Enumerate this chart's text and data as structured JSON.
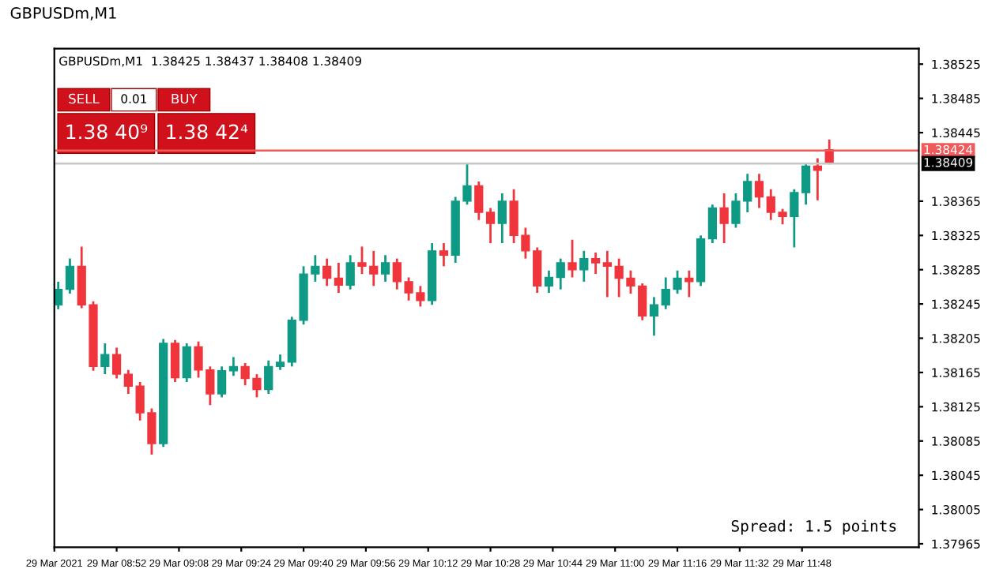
{
  "chart_data": {
    "type": "candlestick",
    "title": "GBPUSDm,M1",
    "subtitle": "GBPUSDm,M1  1.38425 1.38437 1.38408 1.38409",
    "annotations": [
      "SELL",
      "BUY",
      "0.01",
      "1.38 40⁹",
      "1.38 42⁴",
      "Spread: 1.5 points"
    ],
    "x": [
      "2021-03-29T08:37",
      "2021-03-29T08:40",
      "2021-03-29T08:43",
      "2021-03-29T08:46",
      "2021-03-29T08:49",
      "2021-03-29T08:52",
      "2021-03-29T08:55",
      "2021-03-29T08:58",
      "2021-03-29T09:01",
      "2021-03-29T09:04",
      "2021-03-29T09:07",
      "2021-03-29T09:10",
      "2021-03-29T09:13",
      "2021-03-29T09:16",
      "2021-03-29T09:19",
      "2021-03-29T09:22",
      "2021-03-29T09:25",
      "2021-03-29T09:28",
      "2021-03-29T09:31",
      "2021-03-29T09:34",
      "2021-03-29T09:37",
      "2021-03-29T09:40",
      "2021-03-29T09:43",
      "2021-03-29T09:46",
      "2021-03-29T09:49",
      "2021-03-29T09:52",
      "2021-03-29T09:55",
      "2021-03-29T09:58",
      "2021-03-29T10:01",
      "2021-03-29T10:04",
      "2021-03-29T10:07",
      "2021-03-29T10:10",
      "2021-03-29T10:13",
      "2021-03-29T10:16",
      "2021-03-29T10:19",
      "2021-03-29T10:22",
      "2021-03-29T10:25",
      "2021-03-29T10:28",
      "2021-03-29T10:31",
      "2021-03-29T10:34",
      "2021-03-29T10:37",
      "2021-03-29T10:40",
      "2021-03-29T10:43",
      "2021-03-29T10:46",
      "2021-03-29T10:49",
      "2021-03-29T10:52",
      "2021-03-29T10:55",
      "2021-03-29T10:58",
      "2021-03-29T11:01",
      "2021-03-29T11:04",
      "2021-03-29T11:07",
      "2021-03-29T11:10",
      "2021-03-29T11:13",
      "2021-03-29T11:16",
      "2021-03-29T11:19",
      "2021-03-29T11:22",
      "2021-03-29T11:25",
      "2021-03-29T11:28",
      "2021-03-29T11:31",
      "2021-03-29T11:34",
      "2021-03-29T11:37",
      "2021-03-29T11:40",
      "2021-03-29T11:43",
      "2021-03-29T11:46",
      "2021-03-29T11:49",
      "2021-03-29T11:52",
      "2021-03-29T11:55"
    ],
    "ohlc": [
      [
        1.38244,
        1.38271,
        1.38239,
        1.38262
      ],
      [
        1.38262,
        1.38298,
        1.38257,
        1.38289
      ],
      [
        1.38289,
        1.38312,
        1.3824,
        1.38244
      ],
      [
        1.38244,
        1.38248,
        1.38167,
        1.38172
      ],
      [
        1.38172,
        1.38199,
        1.38163,
        1.38186
      ],
      [
        1.38186,
        1.38194,
        1.38158,
        1.38163
      ],
      [
        1.38163,
        1.38168,
        1.3814,
        1.38149
      ],
      [
        1.38149,
        1.38154,
        1.38109,
        1.38118
      ],
      [
        1.38118,
        1.38123,
        1.38069,
        1.38082
      ],
      [
        1.38082,
        1.38204,
        1.38078,
        1.38199
      ],
      [
        1.38199,
        1.38203,
        1.38154,
        1.38159
      ],
      [
        1.38159,
        1.38199,
        1.38154,
        1.38195
      ],
      [
        1.38195,
        1.38201,
        1.38159,
        1.38168
      ],
      [
        1.38168,
        1.38172,
        1.38127,
        1.3814
      ],
      [
        1.3814,
        1.38172,
        1.38136,
        1.38167
      ],
      [
        1.38167,
        1.38183,
        1.38161,
        1.38172
      ],
      [
        1.38172,
        1.38176,
        1.3815,
        1.38158
      ],
      [
        1.38158,
        1.38163,
        1.38136,
        1.38145
      ],
      [
        1.38145,
        1.38179,
        1.3814,
        1.38172
      ],
      [
        1.38172,
        1.38186,
        1.38168,
        1.38177
      ],
      [
        1.38177,
        1.3823,
        1.38172,
        1.38226
      ],
      [
        1.38226,
        1.38289,
        1.38221,
        1.3828
      ],
      [
        1.3828,
        1.38302,
        1.38271,
        1.38289
      ],
      [
        1.38289,
        1.38298,
        1.38266,
        1.38275
      ],
      [
        1.38275,
        1.38293,
        1.38258,
        1.38267
      ],
      [
        1.38267,
        1.38302,
        1.38262,
        1.38293
      ],
      [
        1.38293,
        1.38312,
        1.3828,
        1.38289
      ],
      [
        1.38289,
        1.38307,
        1.38266,
        1.3828
      ],
      [
        1.3828,
        1.38302,
        1.38271,
        1.38293
      ],
      [
        1.38293,
        1.38298,
        1.38262,
        1.38271
      ],
      [
        1.38271,
        1.38276,
        1.38249,
        1.38258
      ],
      [
        1.38258,
        1.38266,
        1.38242,
        1.38249
      ],
      [
        1.38249,
        1.38316,
        1.38244,
        1.38307
      ],
      [
        1.38307,
        1.38316,
        1.38289,
        1.38302
      ],
      [
        1.38302,
        1.3837,
        1.38293,
        1.38365
      ],
      [
        1.38365,
        1.3841,
        1.38361,
        1.38383
      ],
      [
        1.38383,
        1.38388,
        1.38343,
        1.38352
      ],
      [
        1.38352,
        1.38357,
        1.38316,
        1.38339
      ],
      [
        1.38339,
        1.38374,
        1.38316,
        1.38365
      ],
      [
        1.38365,
        1.38379,
        1.38316,
        1.38325
      ],
      [
        1.38325,
        1.38334,
        1.38298,
        1.38307
      ],
      [
        1.38307,
        1.38311,
        1.38258,
        1.38266
      ],
      [
        1.38266,
        1.38284,
        1.38258,
        1.38276
      ],
      [
        1.38276,
        1.38298,
        1.38262,
        1.38293
      ],
      [
        1.38293,
        1.3832,
        1.38276,
        1.38285
      ],
      [
        1.38285,
        1.38307,
        1.38271,
        1.38298
      ],
      [
        1.38298,
        1.38305,
        1.3828,
        1.38293
      ],
      [
        1.38293,
        1.38307,
        1.38253,
        1.38289
      ],
      [
        1.38289,
        1.38298,
        1.38253,
        1.38275
      ],
      [
        1.38275,
        1.38284,
        1.38257,
        1.38266
      ],
      [
        1.38266,
        1.38269,
        1.38226,
        1.38231
      ],
      [
        1.38231,
        1.38253,
        1.38208,
        1.38244
      ],
      [
        1.38244,
        1.38276,
        1.38239,
        1.38262
      ],
      [
        1.38262,
        1.38284,
        1.38257,
        1.38275
      ],
      [
        1.38275,
        1.38284,
        1.38253,
        1.38271
      ],
      [
        1.38271,
        1.38325,
        1.38266,
        1.38321
      ],
      [
        1.38321,
        1.38361,
        1.38316,
        1.38357
      ],
      [
        1.38357,
        1.38374,
        1.38316,
        1.38339
      ],
      [
        1.38339,
        1.38374,
        1.38334,
        1.38365
      ],
      [
        1.38365,
        1.38397,
        1.38352,
        1.38388
      ],
      [
        1.38388,
        1.38397,
        1.38357,
        1.3837
      ],
      [
        1.3837,
        1.38379,
        1.38343,
        1.38352
      ],
      [
        1.38352,
        1.38356,
        1.38338,
        1.38347
      ],
      [
        1.38347,
        1.38379,
        1.38311,
        1.38375
      ],
      [
        1.38375,
        1.3841,
        1.38361,
        1.38406
      ],
      [
        1.38406,
        1.38415,
        1.38366,
        1.38401
      ],
      [
        1.38425,
        1.38437,
        1.38408,
        1.38409
      ]
    ],
    "xlim": [
      "2021-03-29T08:36",
      "2021-03-29T12:18"
    ],
    "xticks": [
      {
        "value": "2021-03-29T08:36",
        "label": "29 Mar 2021"
      },
      {
        "value": "2021-03-29T08:52",
        "label": "29 Mar 08:52"
      },
      {
        "value": "2021-03-29T09:08",
        "label": "29 Mar 09:08"
      },
      {
        "value": "2021-03-29T09:24",
        "label": "29 Mar 09:24"
      },
      {
        "value": "2021-03-29T09:40",
        "label": "29 Mar 09:40"
      },
      {
        "value": "2021-03-29T09:56",
        "label": "29 Mar 09:56"
      },
      {
        "value": "2021-03-29T10:12",
        "label": "29 Mar 10:12"
      },
      {
        "value": "2021-03-29T10:28",
        "label": "29 Mar 10:28"
      },
      {
        "value": "2021-03-29T10:44",
        "label": "29 Mar 10:44"
      },
      {
        "value": "2021-03-29T11:00",
        "label": "29 Mar 11:00"
      },
      {
        "value": "2021-03-29T11:16",
        "label": "29 Mar 11:16"
      },
      {
        "value": "2021-03-29T11:32",
        "label": "29 Mar 11:32"
      },
      {
        "value": "2021-03-29T11:48",
        "label": "29 Mar 11:48"
      }
    ],
    "ylim": [
      1.37961,
      1.38543
    ],
    "yticks": [
      1.38525,
      1.38485,
      1.38445,
      1.38365,
      1.38325,
      1.38285,
      1.38245,
      1.38205,
      1.38165,
      1.38125,
      1.38085,
      1.38045,
      1.38005,
      1.37965
    ],
    "ref_lines": [
      {
        "axis": "y",
        "value": 1.38424,
        "label": "1.38424",
        "color": "#f05a5a"
      },
      {
        "axis": "y",
        "value": 1.38409,
        "label": "1.38409",
        "color": "#c8c8c8"
      }
    ]
  }
}
